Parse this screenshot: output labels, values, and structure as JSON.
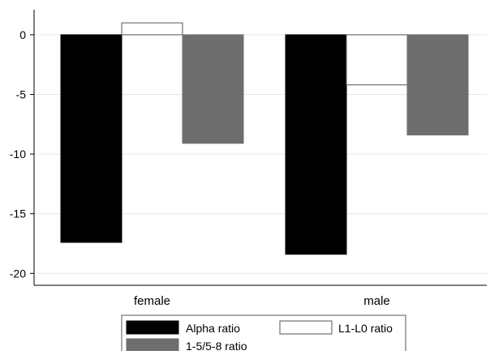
{
  "chart_data": {
    "type": "bar",
    "title": "",
    "xlabel": "",
    "ylabel": "",
    "categories": [
      "female",
      "male"
    ],
    "series": [
      {
        "name": "Alpha ratio",
        "values": [
          -17.4,
          -18.4
        ],
        "color": "#000000"
      },
      {
        "name": "L1-L0 ratio",
        "values": [
          1.0,
          -4.2
        ],
        "color": "#ffffff"
      },
      {
        "name": "1-5/5-8 ratio",
        "values": [
          -9.1,
          -8.4
        ],
        "color": "#6e6e6e"
      }
    ],
    "ylim": [
      -21,
      2.1
    ],
    "yticks": [
      0,
      -5,
      -10,
      -15,
      -20
    ],
    "ytick_labels": [
      "0",
      "-5",
      "-10",
      "-15",
      "-20"
    ],
    "grid": true,
    "legend_position": "bottom"
  }
}
